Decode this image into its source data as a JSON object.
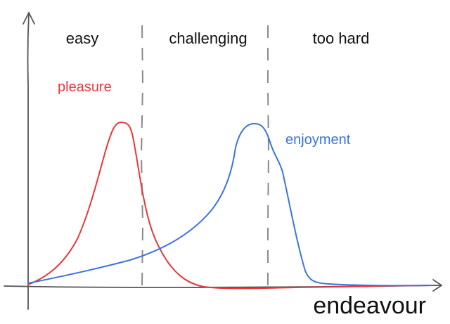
{
  "zones": [
    "easy",
    "challenging",
    "too hard"
  ],
  "x_axis_label": "endeavour",
  "series": [
    {
      "key": "pleasure",
      "name": "pleasure",
      "color": "#e8383b"
    },
    {
      "key": "enjoyment",
      "name": "enjoyment",
      "color": "#3b73e0"
    }
  ],
  "colors": {
    "axis": "#555555",
    "divider": "#8a8a8a",
    "text": "#111111"
  }
}
